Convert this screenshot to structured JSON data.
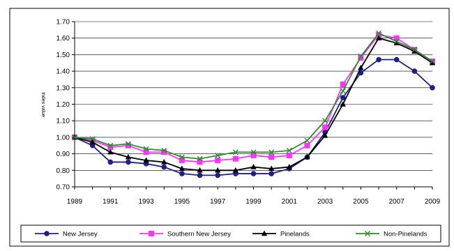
{
  "chart_data": {
    "type": "line",
    "title": "",
    "xlabel": "",
    "ylabel": "Index value",
    "x": [
      1989,
      1990,
      1991,
      1992,
      1993,
      1994,
      1995,
      1996,
      1997,
      1998,
      1999,
      2000,
      2001,
      2002,
      2003,
      2004,
      2005,
      2006,
      2007,
      2008,
      2009
    ],
    "xticks": [
      "1989",
      "1991",
      "1993",
      "1995",
      "1997",
      "1999",
      "2001",
      "2003",
      "2005",
      "2007",
      "2009"
    ],
    "ylim": [
      0.7,
      1.7
    ],
    "yticks": [
      "0.70",
      "0.80",
      "0.90",
      "1.00",
      "1.10",
      "1.20",
      "1.30",
      "1.40",
      "1.50",
      "1.60",
      "1.70"
    ],
    "grid": "horizontal",
    "legend": "bottom",
    "series": [
      {
        "name": "New Jersey",
        "color": "#1f1f8c",
        "marker": "circle",
        "values": [
          1.0,
          0.95,
          0.85,
          0.85,
          0.84,
          0.82,
          0.78,
          0.77,
          0.77,
          0.78,
          0.78,
          0.78,
          0.81,
          0.88,
          1.03,
          1.24,
          1.39,
          1.47,
          1.47,
          1.4,
          1.3
        ]
      },
      {
        "name": "Southern New Jersey",
        "color": "#ff33ff",
        "marker": "square",
        "values": [
          1.0,
          0.98,
          0.94,
          0.95,
          0.91,
          0.91,
          0.86,
          0.85,
          0.86,
          0.87,
          0.89,
          0.88,
          0.89,
          0.95,
          1.06,
          1.32,
          1.48,
          1.62,
          1.6,
          1.53,
          1.46
        ]
      },
      {
        "name": "Pinelands",
        "color": "#000000",
        "marker": "triangle",
        "values": [
          1.0,
          0.97,
          0.91,
          0.88,
          0.86,
          0.85,
          0.81,
          0.8,
          0.8,
          0.8,
          0.82,
          0.81,
          0.82,
          0.88,
          1.01,
          1.2,
          1.42,
          1.6,
          1.57,
          1.52,
          1.45
        ]
      },
      {
        "name": "Non-Pinelands",
        "color": "#2e8b2e",
        "marker": "x",
        "values": [
          1.0,
          0.99,
          0.95,
          0.96,
          0.93,
          0.92,
          0.88,
          0.87,
          0.89,
          0.91,
          0.91,
          0.91,
          0.92,
          0.98,
          1.1,
          1.28,
          1.49,
          1.63,
          1.58,
          1.53,
          1.46
        ]
      }
    ]
  }
}
